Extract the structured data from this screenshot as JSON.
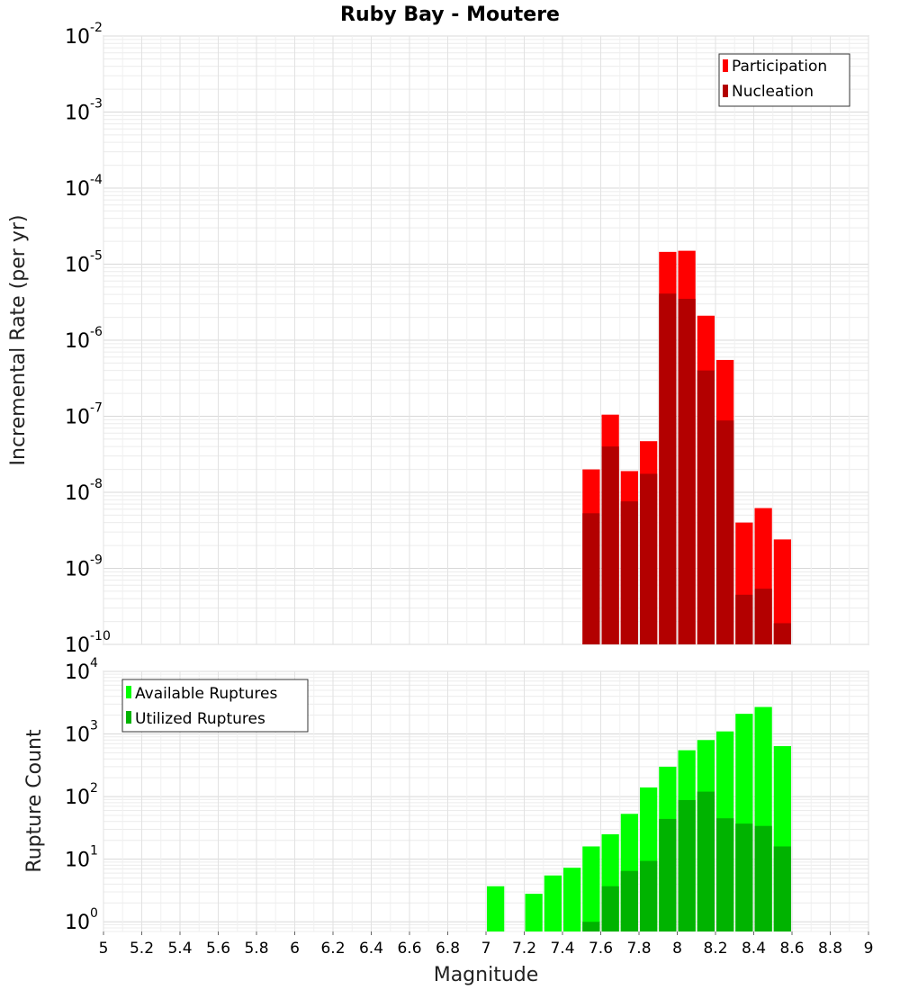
{
  "chart_data": [
    {
      "type": "bar",
      "panel": "top",
      "title": "Ruby Bay - Moutere",
      "xlabel": "",
      "ylabel": "Incremental Rate (per yr)",
      "yscale": "log",
      "ylim": [
        1e-10,
        0.01
      ],
      "xlim": [
        5,
        9
      ],
      "grid": true,
      "legend_position": "top-right",
      "y_ticks": [
        {
          "base": "10",
          "exp": "-10"
        },
        {
          "base": "10",
          "exp": "-9"
        },
        {
          "base": "10",
          "exp": "-8"
        },
        {
          "base": "10",
          "exp": "-7"
        },
        {
          "base": "10",
          "exp": "-6"
        },
        {
          "base": "10",
          "exp": "-5"
        },
        {
          "base": "10",
          "exp": "-4"
        },
        {
          "base": "10",
          "exp": "-3"
        },
        {
          "base": "10",
          "exp": "-2"
        }
      ],
      "x": [
        7.55,
        7.65,
        7.75,
        7.85,
        7.95,
        8.05,
        8.15,
        8.25,
        8.35,
        8.45,
        8.55
      ],
      "series": [
        {
          "name": "Participation",
          "color": "#ff0000",
          "values": [
            2e-08,
            1.05e-07,
            1.9e-08,
            4.7e-08,
            1.45e-05,
            1.5e-05,
            2.1e-06,
            5.5e-07,
            4e-09,
            6.2e-09,
            2.4e-09
          ]
        },
        {
          "name": "Nucleation",
          "color": "#b30000",
          "values": [
            5.3e-09,
            4e-08,
            7.6e-09,
            1.75e-08,
            4.1e-06,
            3.5e-06,
            4e-07,
            8.8e-08,
            4.5e-10,
            5.4e-10,
            1.9e-10
          ]
        }
      ]
    },
    {
      "type": "bar",
      "panel": "bottom",
      "title": "",
      "xlabel": "Magnitude",
      "ylabel": "Rupture Count",
      "yscale": "log",
      "ylim": [
        0.7,
        10000
      ],
      "xlim": [
        5,
        9
      ],
      "grid": true,
      "legend_position": "top-left",
      "y_ticks": [
        {
          "base": "10",
          "exp": "0"
        },
        {
          "base": "10",
          "exp": "1"
        },
        {
          "base": "10",
          "exp": "2"
        },
        {
          "base": "10",
          "exp": "3"
        },
        {
          "base": "10",
          "exp": "4"
        }
      ],
      "x_tick_labels": [
        "5",
        "5.2",
        "5.4",
        "5.6",
        "5.8",
        "6",
        "6.2",
        "6.4",
        "6.6",
        "6.8",
        "7",
        "7.2",
        "7.4",
        "7.6",
        "7.8",
        "8",
        "8.2",
        "8.4",
        "8.6",
        "8.8",
        "9"
      ],
      "x": [
        7.05,
        7.25,
        7.35,
        7.45,
        7.55,
        7.65,
        7.75,
        7.85,
        7.95,
        8.05,
        8.15,
        8.25,
        8.35,
        8.45,
        8.55
      ],
      "series": [
        {
          "name": "Available Ruptures",
          "color": "#00ff00",
          "values": [
            3.7,
            2.8,
            5.5,
            7.3,
            16,
            25,
            53,
            140,
            300,
            550,
            800,
            1100,
            2100,
            2700,
            640
          ]
        },
        {
          "name": "Utilized Ruptures",
          "color": "#00b300",
          "values": [
            null,
            null,
            null,
            null,
            1.0,
            3.7,
            6.5,
            9.4,
            44,
            88,
            120,
            45,
            37,
            34,
            16
          ]
        }
      ]
    }
  ]
}
